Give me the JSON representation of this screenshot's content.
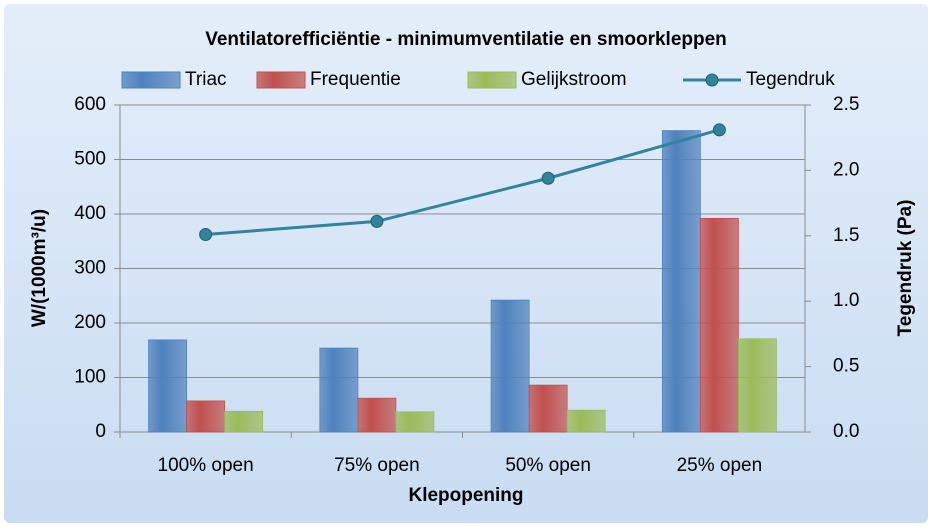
{
  "chart_data": {
    "type": "bar",
    "title": "Ventilatorefficiëntie - minimumventilatie en smoorkleppen",
    "x_label": "Klepopening",
    "y_label": "W/(1000m³/u)",
    "y2_label": "Tegendruk (Pa)",
    "categories": [
      "100% open",
      "75% open",
      "50% open",
      "25% open"
    ],
    "series": [
      {
        "name": "Triac",
        "color": "#4f81bd",
        "values": [
          169,
          154,
          242,
          553
        ]
      },
      {
        "name": "Frequentie",
        "color": "#c0504d",
        "values": [
          57,
          62,
          86,
          392
        ]
      },
      {
        "name": "Gelijkstroom",
        "color": "#9bbb59",
        "values": [
          38,
          37,
          40,
          171
        ]
      },
      {
        "name": "Tegendruk",
        "color": "#31849b",
        "axis": "y2",
        "values": [
          1.51,
          1.61,
          1.94,
          2.31
        ]
      }
    ],
    "ylim": [
      0,
      600
    ],
    "yticks": [
      0,
      100,
      200,
      300,
      400,
      500,
      600
    ],
    "y2lim": [
      0,
      2.5
    ],
    "y2ticks": [
      {
        "value": 0,
        "label": "0.0"
      },
      0.5,
      {
        "value": 1,
        "label": "1.0"
      },
      1.5,
      {
        "value": 2,
        "label": "2.0"
      },
      2.5
    ],
    "grid": true,
    "legend": "top"
  }
}
